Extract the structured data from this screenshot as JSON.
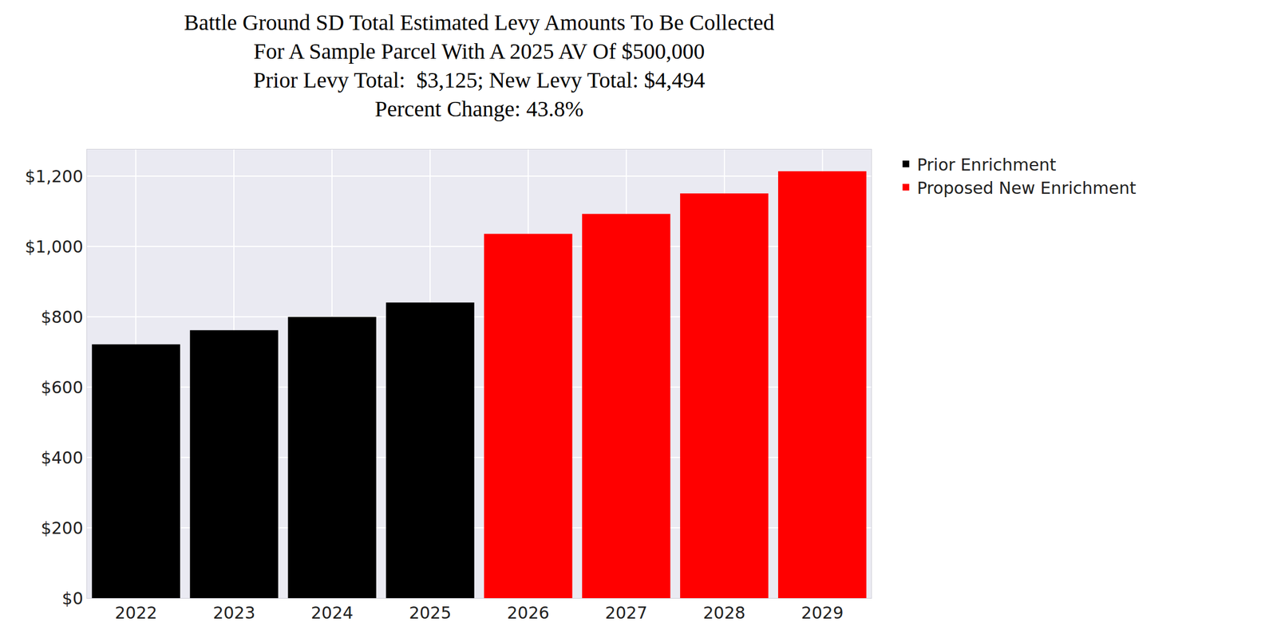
{
  "chart_data": {
    "type": "bar",
    "title": "Battle Ground SD Total Estimated Levy Amounts To Be Collected\nFor A Sample Parcel With A 2025 AV Of $500,000\nPrior Levy Total:  $3,125; New Levy Total: $4,494\nPercent Change: 43.8%",
    "categories": [
      "2022",
      "2023",
      "2024",
      "2025",
      "2026",
      "2027",
      "2028",
      "2029"
    ],
    "series": [
      {
        "name": "Prior Enrichment",
        "color": "#000000",
        "values": [
          722,
          762,
          800,
          841,
          null,
          null,
          null,
          null
        ]
      },
      {
        "name": "Proposed New Enrichment",
        "color": "#ff0000",
        "values": [
          null,
          null,
          null,
          null,
          1036,
          1093,
          1151,
          1214
        ]
      }
    ],
    "ylim": [
      0,
      1276
    ],
    "yticks": [
      {
        "value": 0,
        "label": "$0"
      },
      {
        "value": 200,
        "label": "$200"
      },
      {
        "value": 400,
        "label": "$400"
      },
      {
        "value": 600,
        "label": "$600"
      },
      {
        "value": 800,
        "label": "$800"
      },
      {
        "value": 1000,
        "label": "$1,000"
      },
      {
        "value": 1200,
        "label": "$1,200"
      }
    ],
    "grid": true,
    "legend": "right"
  }
}
